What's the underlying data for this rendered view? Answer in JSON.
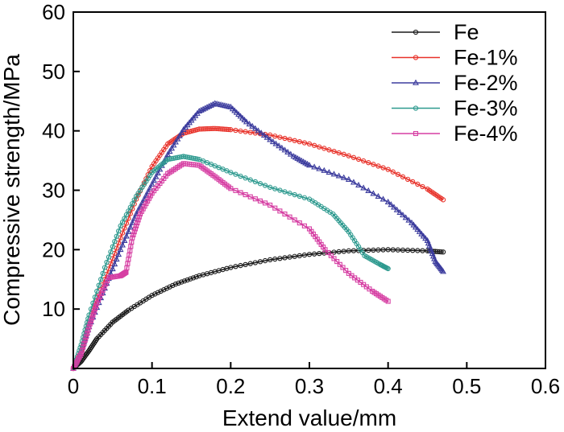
{
  "chart_data": {
    "type": "line",
    "title": "",
    "xlabel": "Extend value/mm",
    "ylabel": "Compressive strength/MPa",
    "xlim": [
      0,
      0.6
    ],
    "ylim": [
      0,
      60
    ],
    "x_ticks": [
      "0",
      "0.1",
      "0.2",
      "0.3",
      "0.4",
      "0.5",
      "0.6"
    ],
    "y_ticks": [
      "10",
      "20",
      "30",
      "40",
      "50",
      "60"
    ],
    "legend_position": "top-right",
    "series": [
      {
        "name": "Fe",
        "color": "#1a1a1a",
        "marker": "circle",
        "x": [
          0.0,
          0.01,
          0.02,
          0.03,
          0.05,
          0.07,
          0.1,
          0.13,
          0.16,
          0.2,
          0.25,
          0.3,
          0.35,
          0.4,
          0.45,
          0.47
        ],
        "y": [
          0.0,
          1.2,
          3.0,
          5.0,
          7.8,
          9.8,
          12.3,
          14.2,
          15.6,
          17.0,
          18.3,
          19.2,
          19.8,
          20.0,
          19.8,
          19.6
        ]
      },
      {
        "name": "Fe-1%",
        "color": "#e8322a",
        "marker": "circle",
        "x": [
          0.0,
          0.01,
          0.02,
          0.04,
          0.06,
          0.08,
          0.1,
          0.12,
          0.14,
          0.16,
          0.18,
          0.2,
          0.25,
          0.3,
          0.35,
          0.4,
          0.45,
          0.47
        ],
        "y": [
          0.0,
          3.0,
          8.0,
          15.0,
          22.0,
          28.5,
          34.0,
          37.8,
          39.6,
          40.3,
          40.4,
          40.2,
          39.3,
          37.8,
          35.8,
          33.5,
          30.2,
          28.4
        ]
      },
      {
        "name": "Fe-2%",
        "color": "#3d3d9e",
        "marker": "triangle",
        "x": [
          0.0,
          0.01,
          0.02,
          0.04,
          0.06,
          0.08,
          0.1,
          0.12,
          0.14,
          0.16,
          0.18,
          0.2,
          0.22,
          0.25,
          0.28,
          0.3,
          0.35,
          0.4,
          0.43,
          0.45,
          0.46,
          0.47
        ],
        "y": [
          0.0,
          3.0,
          7.0,
          13.5,
          20.0,
          26.0,
          31.0,
          36.0,
          40.2,
          43.3,
          44.6,
          44.0,
          41.5,
          38.5,
          35.7,
          34.2,
          31.8,
          28.0,
          24.5,
          21.5,
          18.0,
          16.3
        ]
      },
      {
        "name": "Fe-3%",
        "color": "#2e9a8f",
        "marker": "circle",
        "x": [
          0.0,
          0.01,
          0.02,
          0.04,
          0.06,
          0.08,
          0.1,
          0.12,
          0.14,
          0.16,
          0.2,
          0.25,
          0.3,
          0.33,
          0.35,
          0.37,
          0.39,
          0.4
        ],
        "y": [
          0.0,
          4.0,
          9.0,
          17.0,
          24.0,
          29.0,
          33.0,
          35.2,
          35.7,
          35.2,
          33.0,
          30.5,
          28.5,
          26.0,
          23.0,
          19.0,
          17.5,
          16.8
        ]
      },
      {
        "name": "Fe-4%",
        "color": "#d63fa3",
        "marker": "square",
        "x": [
          0.0,
          0.01,
          0.02,
          0.03,
          0.045,
          0.06,
          0.067,
          0.075,
          0.085,
          0.1,
          0.12,
          0.14,
          0.16,
          0.18,
          0.2,
          0.25,
          0.3,
          0.32,
          0.35,
          0.38,
          0.4
        ],
        "y": [
          0.0,
          2.5,
          7.0,
          11.0,
          15.3,
          15.6,
          16.2,
          22.0,
          26.0,
          29.5,
          32.8,
          34.5,
          34.2,
          32.3,
          30.3,
          27.5,
          23.5,
          20.0,
          16.0,
          13.0,
          11.3
        ]
      }
    ]
  }
}
